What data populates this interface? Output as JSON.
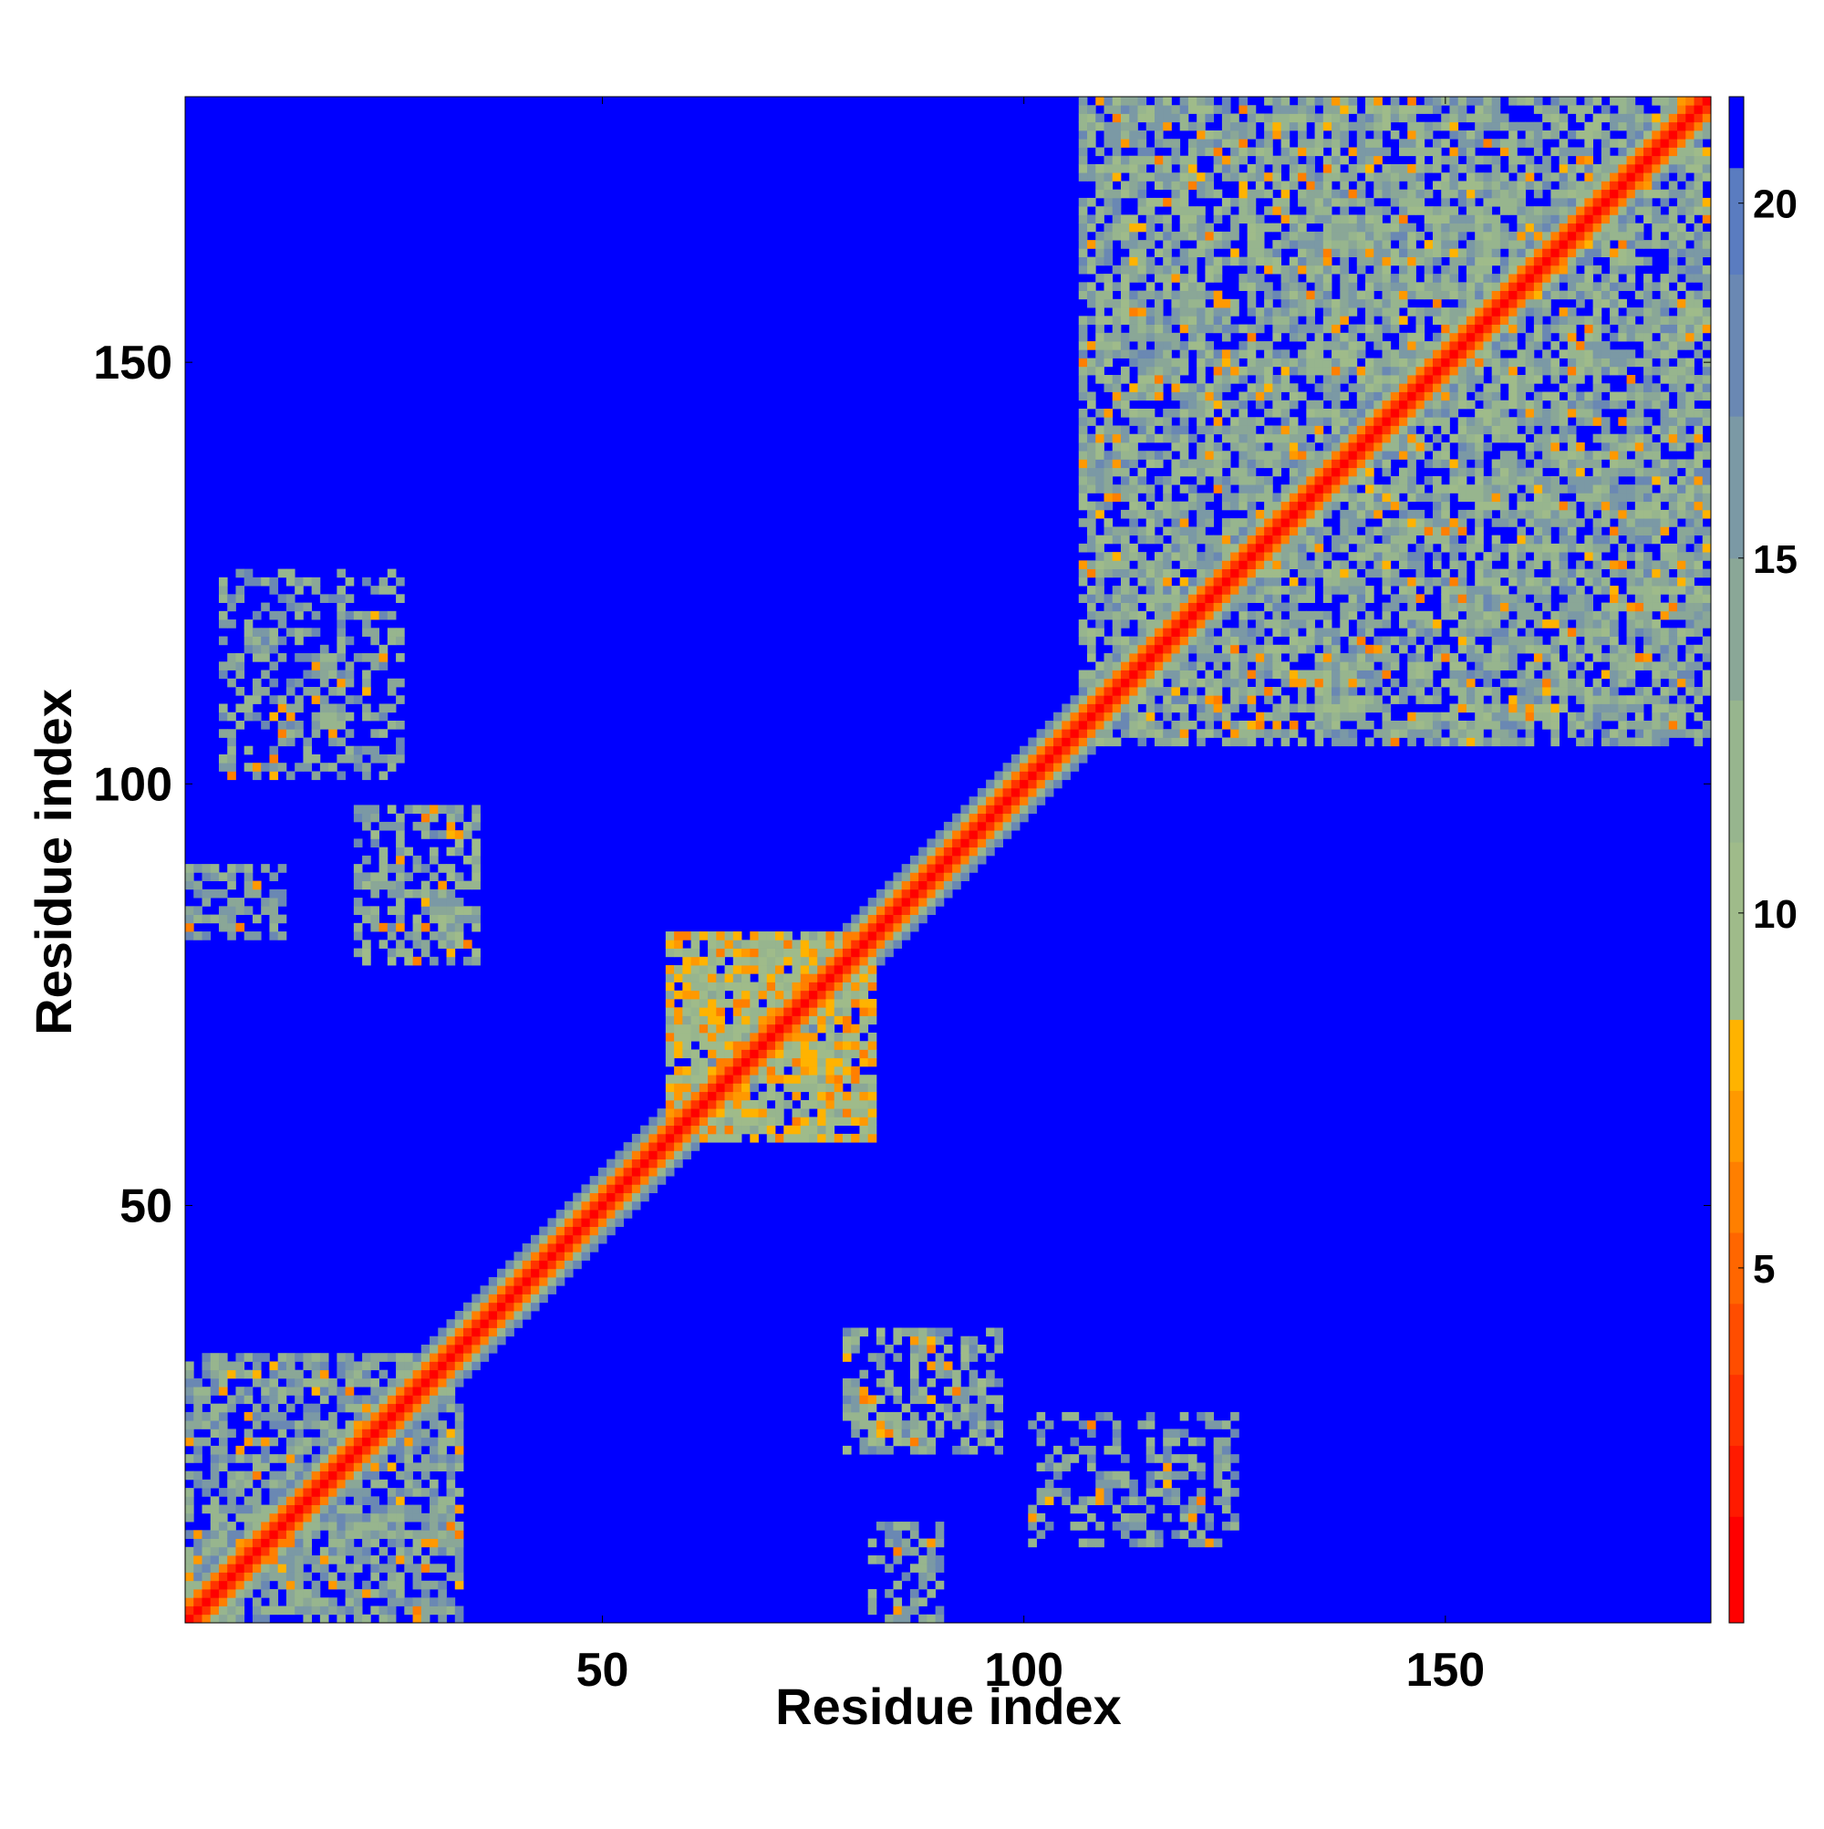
{
  "chart_data": {
    "type": "heatmap",
    "description_of_values": "Residue-residue distance map (symmetric). Cell color encodes distance; pixelated contact map.",
    "xlabel": "Residue index",
    "ylabel": "Residue index",
    "xlim": [
      1,
      181
    ],
    "ylim": [
      1,
      181
    ],
    "x_ticks": [
      50,
      100,
      150
    ],
    "y_ticks": [
      50,
      100,
      150
    ],
    "colorbar": {
      "range": [
        0,
        21.5
      ],
      "ticks": [
        5,
        10,
        15,
        20
      ],
      "bands": [
        {
          "from": 0,
          "to": 1.5,
          "color": "#ff0000"
        },
        {
          "from": 1.5,
          "to": 2.5,
          "color": "#ff1a00"
        },
        {
          "from": 2.5,
          "to": 3.5,
          "color": "#ff3300"
        },
        {
          "from": 3.5,
          "to": 4.5,
          "color": "#ff4d00"
        },
        {
          "from": 4.5,
          "to": 5.5,
          "color": "#ff6600"
        },
        {
          "from": 5.5,
          "to": 6.5,
          "color": "#ff7f00"
        },
        {
          "from": 6.5,
          "to": 7.5,
          "color": "#ff9900"
        },
        {
          "from": 7.5,
          "to": 8.5,
          "color": "#ffb300"
        },
        {
          "from": 8.5,
          "to": 11,
          "color": "#9fbb8a"
        },
        {
          "from": 11,
          "to": 13,
          "color": "#97b58e"
        },
        {
          "from": 13,
          "to": 15,
          "color": "#8aa797"
        },
        {
          "from": 15,
          "to": 17,
          "color": "#7b99a5"
        },
        {
          "from": 17,
          "to": 19,
          "color": "#6a88b3"
        },
        {
          "from": 19,
          "to": 20.5,
          "color": "#5a7cc0"
        },
        {
          "from": 20.5,
          "to": 21.5,
          "color": "#0000ff"
        }
      ]
    },
    "grid": false,
    "regions": [
      {
        "kind": "diagonal",
        "from": 1,
        "to": 181,
        "core_value": 1,
        "halo_values": [
          3,
          6,
          12,
          17
        ]
      },
      {
        "kind": "block",
        "x": [
          107,
          181
        ],
        "y": [
          105,
          181
        ],
        "value": 14,
        "fill": 0.75
      },
      {
        "kind": "block",
        "x": [
          1,
          33
        ],
        "y": [
          1,
          32
        ],
        "value": 15,
        "fill": 0.7
      },
      {
        "kind": "block",
        "x": [
          79,
          97
        ],
        "y": [
          21,
          35
        ],
        "value": 14,
        "fill": 0.6
      },
      {
        "kind": "block",
        "x": [
          101,
          125
        ],
        "y": [
          10,
          25
        ],
        "value": 15,
        "fill": 0.45
      },
      {
        "kind": "block",
        "x": [
          21,
          35
        ],
        "y": [
          79,
          97
        ],
        "value": 14,
        "fill": 0.6
      },
      {
        "kind": "block",
        "x": [
          5,
          26
        ],
        "y": [
          101,
          125
        ],
        "value": 15,
        "fill": 0.45
      },
      {
        "kind": "block",
        "x": [
          1,
          12
        ],
        "y": [
          82,
          90
        ],
        "value": 15,
        "fill": 0.55
      },
      {
        "kind": "block",
        "x": [
          82,
          90
        ],
        "y": [
          1,
          12
        ],
        "value": 15,
        "fill": 0.55
      },
      {
        "kind": "block",
        "x": [
          58,
          82
        ],
        "y": [
          58,
          82
        ],
        "value": 10,
        "fill": 0.9
      }
    ]
  }
}
